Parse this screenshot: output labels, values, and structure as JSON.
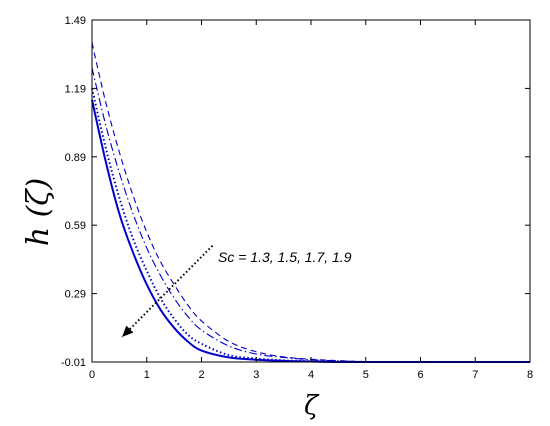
{
  "chart_data": {
    "type": "line",
    "xlabel": "ζ",
    "ylabel": "h (ζ)",
    "xlim": [
      0,
      8
    ],
    "ylim": [
      -0.01,
      1.49
    ],
    "xticks": [
      "0",
      "1",
      "2",
      "3",
      "4",
      "5",
      "6",
      "7",
      "8"
    ],
    "yticks": [
      "-0.01",
      "0.29",
      "0.59",
      "0.89",
      "1.19",
      "1.49"
    ],
    "grid": false,
    "annotation": "Sc = 1.3, 1.5, 1.7, 1.9",
    "colors": {
      "series": "#0000cc",
      "axes": "#000000",
      "arrow": "#000000"
    },
    "x": [
      0,
      0.25,
      0.5,
      0.75,
      1,
      1.25,
      1.5,
      1.75,
      2,
      2.5,
      3,
      3.5,
      4,
      4.5,
      5,
      6,
      7,
      8
    ],
    "series": [
      {
        "style": "solid",
        "values": [
          1.14,
          0.87,
          0.64,
          0.47,
          0.33,
          0.22,
          0.14,
          0.08,
          0.04,
          0.01,
          0.0,
          -0.005,
          -0.008,
          -0.01,
          -0.01,
          -0.01,
          -0.01,
          -0.01
        ]
      },
      {
        "style": "dotted",
        "values": [
          1.19,
          0.93,
          0.71,
          0.53,
          0.39,
          0.27,
          0.18,
          0.11,
          0.07,
          0.02,
          0.005,
          -0.003,
          -0.007,
          -0.01,
          -0.01,
          -0.01,
          -0.01,
          -0.01
        ]
      },
      {
        "style": "dashdot",
        "values": [
          1.28,
          1.03,
          0.82,
          0.64,
          0.49,
          0.37,
          0.27,
          0.19,
          0.13,
          0.06,
          0.025,
          0.01,
          0.0,
          -0.005,
          -0.008,
          -0.01,
          -0.01,
          -0.01
        ]
      },
      {
        "style": "dashed",
        "values": [
          1.39,
          1.13,
          0.91,
          0.72,
          0.56,
          0.43,
          0.33,
          0.24,
          0.17,
          0.08,
          0.035,
          0.012,
          0.002,
          -0.004,
          -0.008,
          -0.01,
          -0.01,
          -0.01
        ]
      }
    ],
    "arrow": {
      "from": [
        2.2,
        0.5
      ],
      "to": [
        0.55,
        0.1
      ]
    }
  }
}
